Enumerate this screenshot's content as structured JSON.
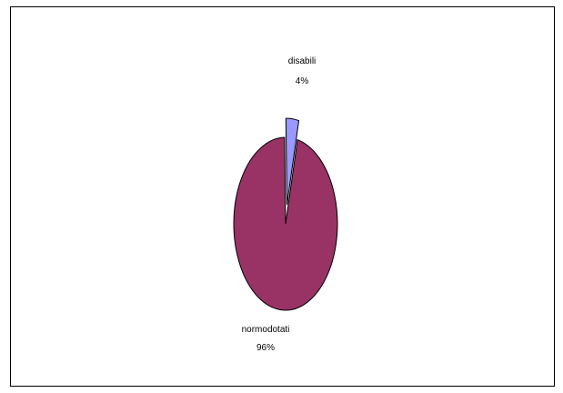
{
  "chart_data": {
    "type": "pie",
    "title": "",
    "slices": [
      {
        "name": "disabili",
        "value": 4,
        "label": "4%",
        "color": "#9999ff",
        "exploded": true
      },
      {
        "name": "normodotati",
        "value": 96,
        "label": "96%",
        "color": "#993366",
        "exploded": false
      }
    ],
    "legend": "none"
  }
}
